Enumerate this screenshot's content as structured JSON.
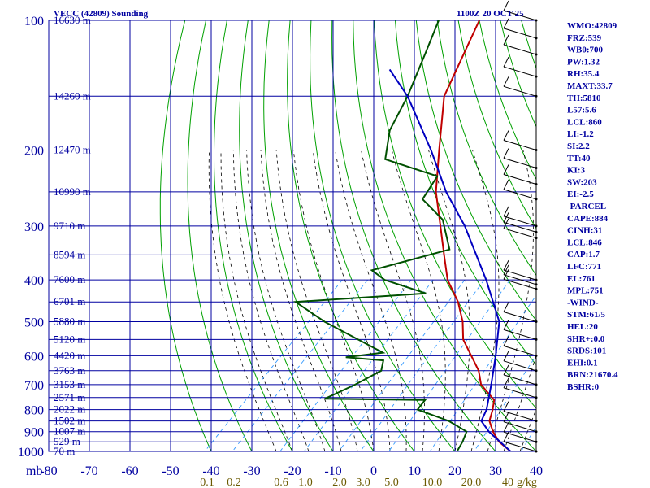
{
  "header": {
    "station": "VECC (42809) Sounding",
    "time": "1100Z 20 OCT 25"
  },
  "indices": [
    "WMO:42809",
    "FRZ:539",
    "WB0:700",
    "PW:1.32",
    "RH:35.4",
    "MAXT:33.7",
    "TH:5810",
    "L57:5.6",
    "LCL:860",
    "LI:-1.2",
    "SI:2.2",
    "TT:40",
    "KI:3",
    "SW:203",
    "EI:-2.5",
    "-PARCEL-",
    "CAPE:884",
    "CINH:31",
    "LCL:846",
    "CAP:1.7",
    "LFC:771",
    "EL:761",
    "MPL:751",
    "-WIND-",
    "STM:61/5",
    "HEL:20",
    "SHR+:0.0",
    "SRDS:101",
    "EHI:0.1",
    "BRN:21670.4",
    "BSHR:0"
  ],
  "colors": {
    "grid": "#0000a0",
    "dry_adiabat": "#00a000",
    "moist_adiabat": "#000000",
    "mixing_ratio": "#3399ff",
    "temperature": "#c00000",
    "dewpoint": "#005000",
    "parcel": "#0000c0",
    "text": "#0000a0",
    "mixing_label": "#6b5a00"
  },
  "chart_data": {
    "type": "line",
    "title": "VECC (42809) Sounding",
    "subtitle": "1100Z 20 OCT 25",
    "x_unit_label": "mb",
    "y_unit_label": "g/kg",
    "xlim": [
      -80,
      40
    ],
    "ylim_pressure_mb": [
      1000,
      100
    ],
    "pressure_ticks": [
      100,
      200,
      300,
      400,
      500,
      600,
      700,
      800,
      900,
      1000
    ],
    "pressure_lines": [
      100,
      150,
      200,
      250,
      300,
      350,
      400,
      450,
      500,
      550,
      600,
      650,
      700,
      750,
      800,
      850,
      900,
      950,
      1000
    ],
    "temperature_ticks": [
      -80,
      -70,
      -60,
      -50,
      -40,
      -30,
      -20,
      -10,
      0,
      10,
      20,
      30,
      40
    ],
    "height_labels": [
      {
        "p": 100,
        "label": "16630 m"
      },
      {
        "p": 150,
        "label": "14260 m"
      },
      {
        "p": 200,
        "label": "12470 m"
      },
      {
        "p": 250,
        "label": "10990 m"
      },
      {
        "p": 300,
        "label": "9710 m"
      },
      {
        "p": 350,
        "label": "8594 m"
      },
      {
        "p": 400,
        "label": "7600 m"
      },
      {
        "p": 450,
        "label": "6701 m"
      },
      {
        "p": 500,
        "label": "5880 m"
      },
      {
        "p": 550,
        "label": "5120 m"
      },
      {
        "p": 600,
        "label": "4420 m"
      },
      {
        "p": 650,
        "label": "3763 m"
      },
      {
        "p": 700,
        "label": "3153 m"
      },
      {
        "p": 750,
        "label": "2571 m"
      },
      {
        "p": 800,
        "label": "2022 m"
      },
      {
        "p": 850,
        "label": "1502 m"
      },
      {
        "p": 900,
        "label": "1007 m"
      },
      {
        "p": 950,
        "label": "529 m"
      },
      {
        "p": 1000,
        "label": "70 m"
      }
    ],
    "mixing_ratio_labels": [
      "0.1",
      "0.2",
      "0.6",
      "1.0",
      "2.0",
      "3.0",
      "5.0",
      "10.0",
      "20.0",
      "40"
    ],
    "series": [
      {
        "name": "",
        "kind": "temperature",
        "points": [
          {
            "p": 1000,
            "t": 33.7
          },
          {
            "p": 950,
            "t": 28.5
          },
          {
            "p": 900,
            "t": 24.5
          },
          {
            "p": 850,
            "t": 21.0
          },
          {
            "p": 800,
            "t": 19.0
          },
          {
            "p": 760,
            "t": 17.0
          },
          {
            "p": 700,
            "t": 10.0
          },
          {
            "p": 650,
            "t": 6.0
          },
          {
            "p": 600,
            "t": 0.5
          },
          {
            "p": 550,
            "t": -5.5
          },
          {
            "p": 500,
            "t": -10.0
          },
          {
            "p": 450,
            "t": -16.0
          },
          {
            "p": 400,
            "t": -24.0
          },
          {
            "p": 350,
            "t": -31.0
          },
          {
            "p": 300,
            "t": -39.0
          },
          {
            "p": 250,
            "t": -48.5
          },
          {
            "p": 200,
            "t": -58.0
          },
          {
            "p": 150,
            "t": -70.0
          },
          {
            "p": 100,
            "t": -80.0
          }
        ]
      },
      {
        "name": "",
        "kind": "dewpoint",
        "points": [
          {
            "p": 1000,
            "t": 20.5
          },
          {
            "p": 950,
            "t": 19.5
          },
          {
            "p": 900,
            "t": 18.0
          },
          {
            "p": 850,
            "t": 11.0
          },
          {
            "p": 800,
            "t": 0.5
          },
          {
            "p": 760,
            "t": 0.0
          },
          {
            "p": 755,
            "t": -25.0
          },
          {
            "p": 700,
            "t": -21.0
          },
          {
            "p": 650,
            "t": -18.0
          },
          {
            "p": 615,
            "t": -20.0
          },
          {
            "p": 605,
            "t": -30.0
          },
          {
            "p": 590,
            "t": -22.0
          },
          {
            "p": 500,
            "t": -44.0
          },
          {
            "p": 450,
            "t": -56.0
          },
          {
            "p": 430,
            "t": -26.0
          },
          {
            "p": 400,
            "t": -39.5
          },
          {
            "p": 380,
            "t": -45.0
          },
          {
            "p": 340,
            "t": -31.0
          },
          {
            "p": 290,
            "t": -40.0
          },
          {
            "p": 260,
            "t": -50.0
          },
          {
            "p": 230,
            "t": -52.0
          },
          {
            "p": 210,
            "t": -69.0
          },
          {
            "p": 180,
            "t": -75.0
          },
          {
            "p": 150,
            "t": -79.0
          },
          {
            "p": 120,
            "t": -85.0
          },
          {
            "p": 100,
            "t": -90.0
          }
        ]
      },
      {
        "name": "",
        "kind": "parcel",
        "points": [
          {
            "p": 1000,
            "t": 33.7
          },
          {
            "p": 900,
            "t": 23.5
          },
          {
            "p": 850,
            "t": 19.0
          },
          {
            "p": 800,
            "t": 17.5
          },
          {
            "p": 700,
            "t": 12.5
          },
          {
            "p": 600,
            "t": 6.5
          },
          {
            "p": 500,
            "t": -1.0
          },
          {
            "p": 400,
            "t": -14.5
          },
          {
            "p": 300,
            "t": -33.0
          },
          {
            "p": 250,
            "t": -46.0
          },
          {
            "p": 200,
            "t": -60.0
          },
          {
            "p": 150,
            "t": -79.0
          },
          {
            "p": 130,
            "t": -90.0
          }
        ]
      }
    ],
    "wind_barbs": [
      {
        "p": 100
      },
      {
        "p": 110
      },
      {
        "p": 120
      },
      {
        "p": 135
      },
      {
        "p": 150
      },
      {
        "p": 200
      },
      {
        "p": 220
      },
      {
        "p": 240
      },
      {
        "p": 260
      },
      {
        "p": 300
      },
      {
        "p": 310
      },
      {
        "p": 320
      },
      {
        "p": 400
      },
      {
        "p": 410
      },
      {
        "p": 420
      },
      {
        "p": 500
      },
      {
        "p": 550
      },
      {
        "p": 600
      },
      {
        "p": 650
      },
      {
        "p": 700
      },
      {
        "p": 750
      },
      {
        "p": 850
      },
      {
        "p": 900
      },
      {
        "p": 950
      },
      {
        "p": 1000
      }
    ]
  }
}
